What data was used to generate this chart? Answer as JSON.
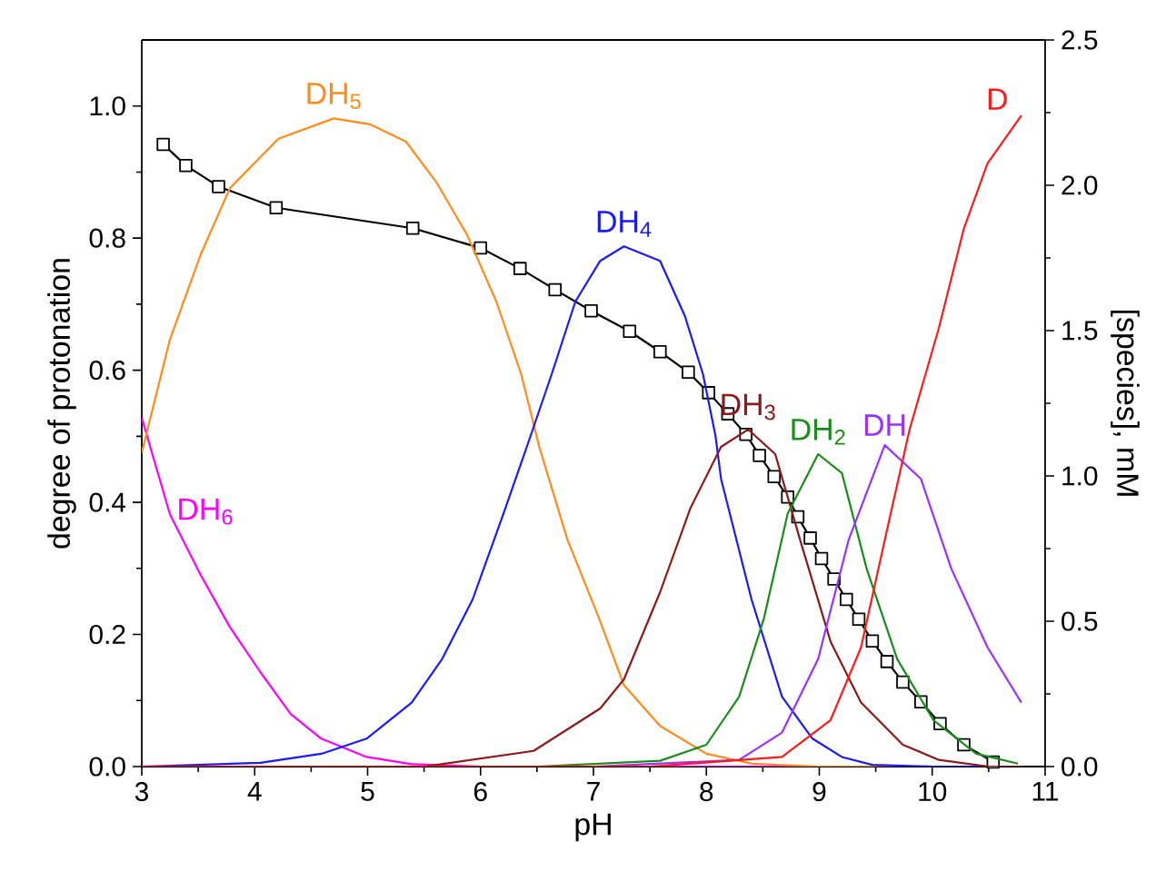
{
  "chart_data": {
    "type": "line",
    "xlabel": "pH",
    "ylabel": "degree of protonation",
    "y2label": "[species], mM",
    "xlim": [
      3,
      11
    ],
    "xticks": [
      3,
      4,
      5,
      6,
      7,
      8,
      9,
      10,
      11
    ],
    "ylim": [
      0,
      1.1
    ],
    "yticks": [
      {
        "value": 0,
        "label": "0.0"
      },
      {
        "value": 0.2,
        "label": "0.2"
      },
      {
        "value": 0.4,
        "label": "0.4"
      },
      {
        "value": 0.6,
        "label": "0.6"
      },
      {
        "value": 0.8,
        "label": "0.8"
      },
      {
        "value": 1.0,
        "label": "1.0"
      }
    ],
    "y2lim": [
      0,
      2.5
    ],
    "y2ticks": [
      {
        "value": 0,
        "label": "0.0"
      },
      {
        "value": 0.5,
        "label": "0.5"
      },
      {
        "value": 1.0,
        "label": "1.0"
      },
      {
        "value": 1.5,
        "label": "1.5"
      },
      {
        "value": 2.0,
        "label": "2.0"
      },
      {
        "value": 2.5,
        "label": "2.5"
      }
    ],
    "series": [
      {
        "name": "DH$_{6}$",
        "color": "#ff00ff",
        "axis": "y2",
        "marker": "none",
        "x": [
          3.0,
          3.25,
          3.52,
          3.78,
          4.05,
          4.32,
          4.59,
          4.99,
          5.39,
          6.0,
          8.0,
          10.8
        ],
        "values": [
          1.2,
          0.867,
          0.66,
          0.48,
          0.325,
          0.18,
          0.096,
          0.033,
          0.008,
          0,
          0,
          0
        ]
      },
      {
        "name": "DH$_{5}$",
        "color": "#ff8c1a",
        "axis": "y2",
        "marker": "none",
        "x": [
          3.0,
          3.25,
          3.52,
          3.78,
          4.21,
          4.7,
          5.02,
          5.34,
          5.61,
          5.88,
          6.14,
          6.36,
          6.52,
          6.77,
          7.05,
          7.27,
          7.59,
          8.0,
          8.4,
          9.0,
          10.8
        ],
        "values": [
          1.08,
          1.47,
          1.76,
          1.99,
          2.16,
          2.23,
          2.21,
          2.15,
          2.01,
          1.83,
          1.6,
          1.35,
          1.1,
          0.78,
          0.51,
          0.28,
          0.14,
          0.044,
          0.01,
          0,
          0
        ]
      },
      {
        "name": "DH$_{4}$",
        "color": "#1a1aff",
        "axis": "y2",
        "marker": "none",
        "x": [
          3.0,
          4.05,
          4.59,
          4.99,
          5.39,
          5.66,
          5.93,
          6.2,
          6.41,
          6.63,
          6.84,
          7.06,
          7.27,
          7.59,
          7.81,
          7.97,
          8.08,
          8.13,
          8.4,
          8.67,
          8.94,
          9.2,
          9.47,
          10.0,
          10.8
        ],
        "values": [
          0,
          0.013,
          0.044,
          0.096,
          0.22,
          0.37,
          0.575,
          0.867,
          1.1,
          1.35,
          1.6,
          1.74,
          1.79,
          1.74,
          1.55,
          1.35,
          1.14,
          0.99,
          0.575,
          0.24,
          0.096,
          0.033,
          0.006,
          0,
          0
        ]
      },
      {
        "name": "DH$_{3}$",
        "color": "#8b1a1a",
        "axis": "y2",
        "marker": "none",
        "x": [
          3.0,
          5.5,
          6.47,
          7.06,
          7.27,
          7.59,
          7.86,
          8.13,
          8.37,
          8.61,
          8.83,
          9.1,
          9.37,
          9.74,
          10.06,
          10.5,
          10.8
        ],
        "values": [
          0,
          0,
          0.054,
          0.2,
          0.3,
          0.6,
          0.89,
          1.1,
          1.16,
          1.075,
          0.78,
          0.43,
          0.22,
          0.075,
          0.023,
          0,
          0
        ]
      },
      {
        "name": "DH$_{2}$",
        "color": "#1a8c1a",
        "axis": "y2",
        "marker": "none",
        "x": [
          3.0,
          6.5,
          7.59,
          8.0,
          8.29,
          8.51,
          8.72,
          8.99,
          9.2,
          9.42,
          9.69,
          10.01,
          10.39,
          10.76
        ],
        "values": [
          0,
          0,
          0.02,
          0.075,
          0.24,
          0.51,
          0.87,
          1.075,
          1.01,
          0.68,
          0.37,
          0.16,
          0.044,
          0.01
        ]
      },
      {
        "name": "DH",
        "color": "#9b30ff",
        "axis": "y2",
        "marker": "none",
        "x": [
          3.0,
          7.0,
          8.29,
          8.67,
          8.99,
          9.26,
          9.58,
          9.9,
          10.17,
          10.49,
          10.79
        ],
        "values": [
          0,
          0,
          0.023,
          0.117,
          0.37,
          0.78,
          1.106,
          0.99,
          0.68,
          0.41,
          0.22
        ]
      },
      {
        "name": "D",
        "color": "#ff1a1a",
        "axis": "y2",
        "marker": "none",
        "x": [
          3.0,
          7.5,
          8.67,
          9.1,
          9.37,
          9.58,
          9.8,
          10.06,
          10.28,
          10.49,
          10.79
        ],
        "values": [
          0,
          0,
          0.033,
          0.16,
          0.41,
          0.78,
          1.16,
          1.51,
          1.85,
          2.075,
          2.24
        ]
      },
      {
        "color": "#000000",
        "axis": "y",
        "marker": "square",
        "x": [
          3.19,
          3.39,
          3.68,
          4.19,
          5.4,
          6.0,
          6.35,
          6.66,
          6.98,
          7.32,
          7.59,
          7.84,
          8.02,
          8.19,
          8.35,
          8.47,
          8.6,
          8.72,
          8.81,
          8.92,
          9.02,
          9.13,
          9.24,
          9.35,
          9.47,
          9.6,
          9.74,
          9.9,
          10.07,
          10.28,
          10.54
        ],
        "values": [
          0.942,
          0.91,
          0.878,
          0.846,
          0.815,
          0.785,
          0.754,
          0.722,
          0.69,
          0.659,
          0.628,
          0.597,
          0.566,
          0.534,
          0.503,
          0.471,
          0.439,
          0.408,
          0.378,
          0.346,
          0.315,
          0.284,
          0.253,
          0.223,
          0.19,
          0.159,
          0.128,
          0.098,
          0.065,
          0.033,
          0.007
        ]
      }
    ]
  }
}
